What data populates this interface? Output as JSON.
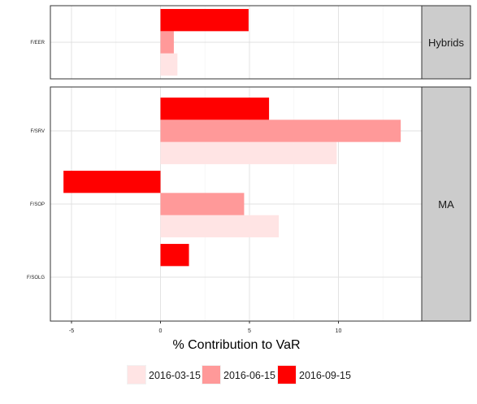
{
  "chart_data": {
    "type": "bar",
    "orientation": "horizontal",
    "xlabel": "% Contribution to VaR",
    "xlim": [
      -6.2,
      14.4
    ],
    "x_ticks": [
      -5,
      0,
      5,
      10
    ],
    "x_tick_labels": [
      "-5",
      "0",
      "5",
      "10"
    ],
    "grid": true,
    "legend_position": "bottom",
    "series": [
      {
        "name": "2016-03-15",
        "color": "#ffe4e4"
      },
      {
        "name": "2016-06-15",
        "color": "#ff9999"
      },
      {
        "name": "2016-09-15",
        "color": "#ff0000"
      }
    ],
    "panels": [
      {
        "strip": "Hybrids",
        "categories": [
          "F/EER"
        ],
        "values": {
          "F/EER": [
            0.95,
            0.75,
            4.95
          ]
        }
      },
      {
        "strip": "MA",
        "categories": [
          "F/SRV",
          "F/SOP",
          "F/SOLG"
        ],
        "values": {
          "F/SRV": [
            9.9,
            13.5,
            6.1
          ],
          "F/SOP": [
            6.65,
            4.7,
            -5.45
          ],
          "F/SOLG": [
            null,
            null,
            1.6
          ]
        }
      }
    ]
  }
}
